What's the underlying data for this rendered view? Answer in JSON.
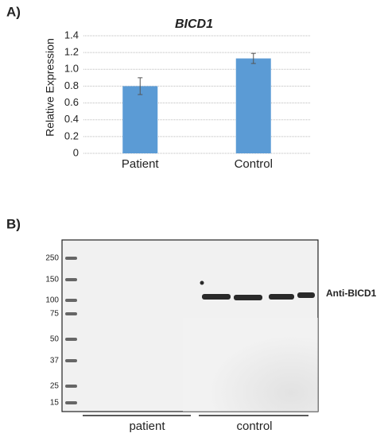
{
  "panel_a": {
    "label": "A)"
  },
  "chart_data": {
    "type": "bar",
    "title": "BICD1",
    "y_label": "Relative Expression",
    "categories": [
      "Patient",
      "Control"
    ],
    "values": [
      0.8,
      1.13
    ],
    "errors": [
      0.1,
      0.06
    ],
    "color": "#5b9bd5",
    "error_color": "#555555",
    "ylim": [
      0,
      1.4
    ],
    "yticks": [
      0,
      0.2,
      0.4,
      0.6,
      {
        "value": 0.8,
        "label": "0.8"
      },
      {
        "value": 1,
        "label": "1.0"
      },
      1.2,
      1.4
    ],
    "grid": true
  },
  "panel_b": {
    "label": "B)",
    "ladder": [
      "250",
      "150",
      "100",
      "75",
      "50",
      "37",
      "25",
      "15"
    ],
    "antibody": "Anti-BICD1",
    "groups": [
      "patient",
      "control"
    ]
  }
}
